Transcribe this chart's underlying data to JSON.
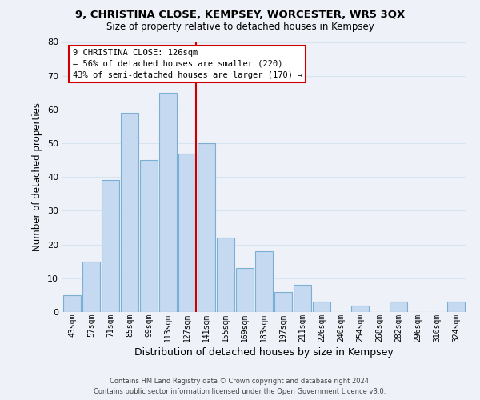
{
  "title": "9, CHRISTINA CLOSE, KEMPSEY, WORCESTER, WR5 3QX",
  "subtitle": "Size of property relative to detached houses in Kempsey",
  "xlabel": "Distribution of detached houses by size in Kempsey",
  "ylabel": "Number of detached properties",
  "bar_labels": [
    "43sqm",
    "57sqm",
    "71sqm",
    "85sqm",
    "99sqm",
    "113sqm",
    "127sqm",
    "141sqm",
    "155sqm",
    "169sqm",
    "183sqm",
    "197sqm",
    "211sqm",
    "226sqm",
    "240sqm",
    "254sqm",
    "268sqm",
    "282sqm",
    "296sqm",
    "310sqm",
    "324sqm"
  ],
  "bar_values": [
    5,
    15,
    39,
    59,
    45,
    65,
    47,
    50,
    22,
    13,
    18,
    6,
    8,
    3,
    0,
    2,
    0,
    3,
    0,
    0,
    3
  ],
  "bar_color": "#c5d9f0",
  "bar_edge_color": "#7bafd4",
  "highlight_index": 6,
  "highlight_line_color": "#cc0000",
  "annotation_line1": "9 CHRISTINA CLOSE: 126sqm",
  "annotation_line2": "← 56% of detached houses are smaller (220)",
  "annotation_line3": "43% of semi-detached houses are larger (170) →",
  "annotation_box_edge_color": "#cc0000",
  "annotation_box_face_color": "#ffffff",
  "ylim": [
    0,
    80
  ],
  "yticks": [
    0,
    10,
    20,
    30,
    40,
    50,
    60,
    70,
    80
  ],
  "grid_color": "#d8e4f0",
  "bg_color": "#eef2f8",
  "footer_line1": "Contains HM Land Registry data © Crown copyright and database right 2024.",
  "footer_line2": "Contains public sector information licensed under the Open Government Licence v3.0."
}
